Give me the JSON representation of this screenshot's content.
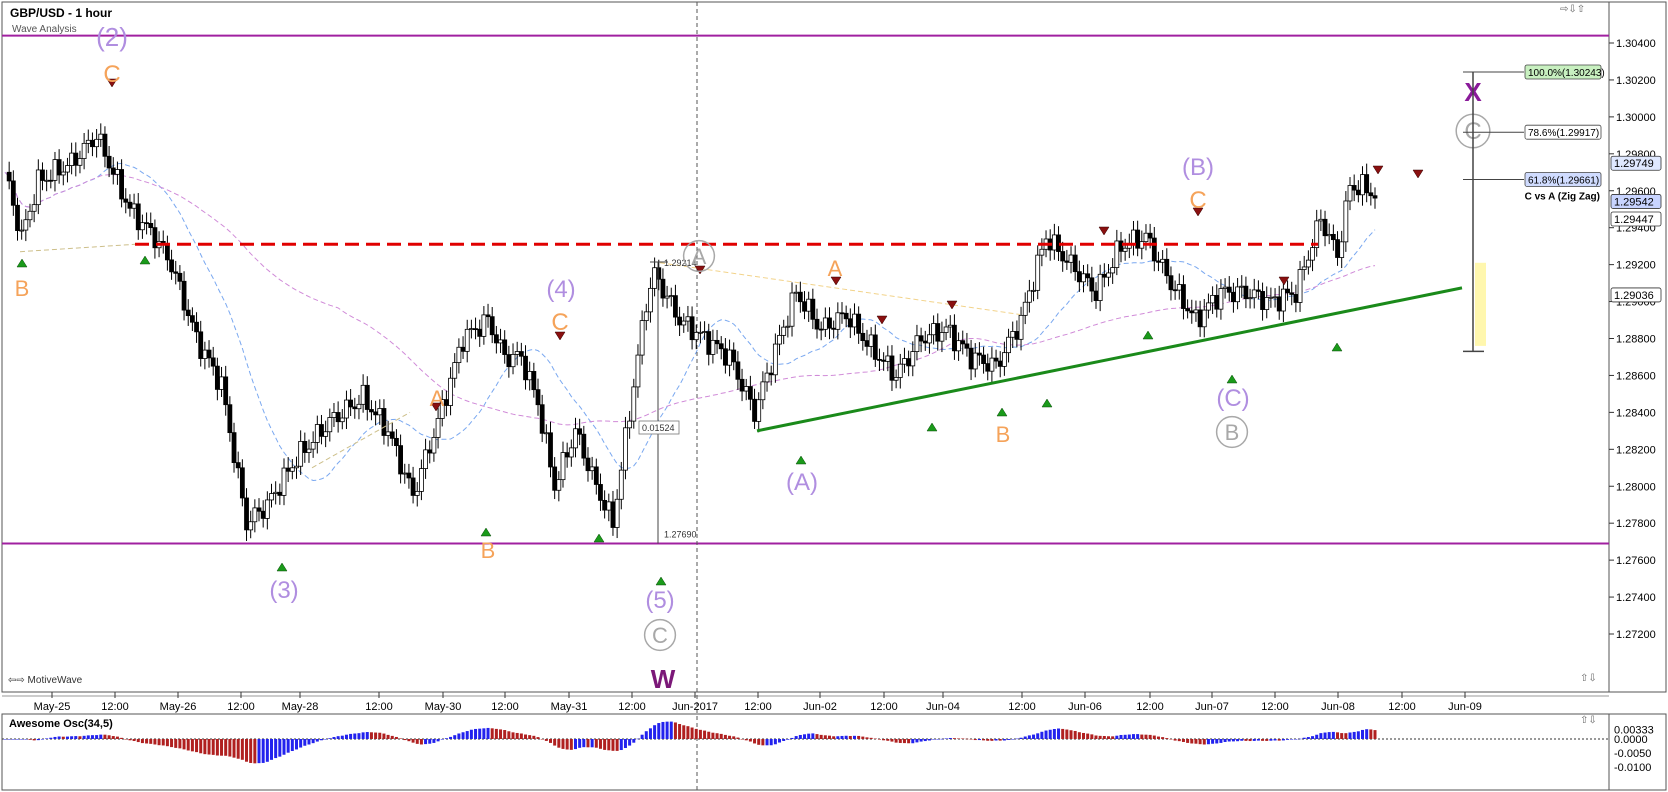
{
  "header": {
    "title": "GBP/USD - 1 hour",
    "subtitle": "Wave Analysis"
  },
  "brand": "MotiveWave",
  "oscillator": {
    "title": "Awesome Osc(34,5)",
    "ticks": [
      "0.00333",
      "0.0000",
      "-0.0050",
      "-0.0100"
    ]
  },
  "icons": {
    "nav_left": "double-arrow-left-icon",
    "nav_right": "double-arrow-right-icon",
    "scroll": "scroll-arrows-icon"
  },
  "colors": {
    "up_candle": "#ffffff",
    "down_candle": "#000000",
    "resistance": "#e00000",
    "support_trend": "#1a8a1a",
    "range_lines": "#a020a0",
    "wave_purple": "#b08ee0",
    "wave_orange": "#f5a35a",
    "wave_gray": "#a8a8a8",
    "osc_up": "#2222ee",
    "osc_down": "#b02020"
  },
  "chart_data": {
    "type": "candlestick",
    "title": "GBP/USD - 1 hour",
    "x_tick_labels": [
      "May-25",
      "12:00",
      "May-26",
      "12:00",
      "May-28",
      "12:00",
      "May-30",
      "12:00",
      "May-31",
      "12:00",
      "Jun-2017",
      "12:00",
      "Jun-02",
      "12:00",
      "Jun-04",
      "12:00",
      "Jun-06",
      "12:00",
      "Jun-07",
      "12:00",
      "Jun-08",
      "12:00",
      "Jun-09"
    ],
    "y_ticks": [
      1.304,
      1.302,
      1.3,
      1.298,
      1.296,
      1.294,
      1.292,
      1.29,
      1.288,
      1.286,
      1.284,
      1.282,
      1.28,
      1.278,
      1.276,
      1.274,
      1.272
    ],
    "y_tick_labels": [
      "1.30400",
      "1.30200",
      "1.30000",
      "1.29800",
      "1.29600",
      "1.29400",
      "1.29200",
      "1.29000",
      "1.28800",
      "1.28600",
      "1.28400",
      "1.28200",
      "1.28000",
      "1.27800",
      "1.27600",
      "1.27400",
      "1.27200"
    ],
    "ylim": [
      1.2707,
      1.3065
    ],
    "price_tags": [
      "1.29749",
      "1.29542",
      "1.29447",
      "1.29036"
    ],
    "fib_levels": [
      "100.0%(1.30243)",
      "78.6%(1.29917)",
      "61.8%(1.29661)"
    ],
    "fib_caption": "C vs A (Zig Zag)",
    "measure_labels": [
      "1.29214",
      "0.01524",
      "1.27690"
    ],
    "wave_labels": [
      "(2)",
      "C",
      "B",
      "(3)",
      "A",
      "B",
      "(4)",
      "C",
      "(5)",
      "C",
      "W",
      "A",
      "(A)",
      "A",
      "B",
      "(B)",
      "C",
      "(C)",
      "B",
      "C",
      "X"
    ],
    "key_levels": {
      "upper_range": 1.3044,
      "lower_range": 1.2769,
      "resistance": 1.2931,
      "trendline_start": 1.283,
      "trendline_end": 1.2915
    },
    "grid": false
  }
}
